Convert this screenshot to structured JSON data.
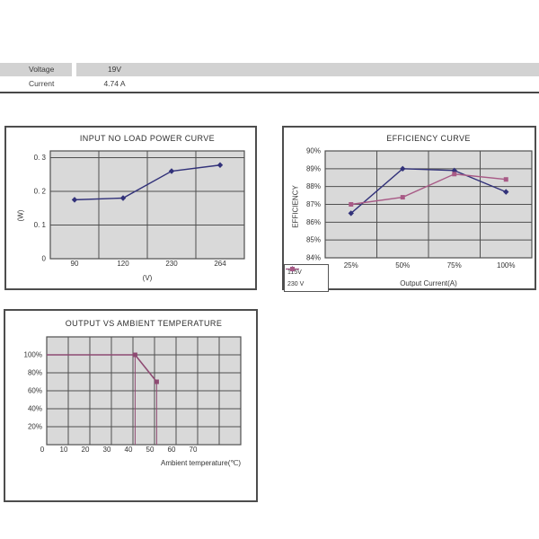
{
  "colors": {
    "plot_bg": "#D9D9D9",
    "grid": "#4F4F4F",
    "box_border": "#4D4D4D",
    "navy": "#32327A",
    "navy_marker": "#23235C",
    "magenta": "#A85A86",
    "magenta_marker": "#97406E",
    "purple": "#8E4A72",
    "table_row_bg": "#D2D2D2"
  },
  "spec_table": {
    "rows": [
      {
        "label": "Voltage",
        "value": "19V"
      },
      {
        "label": "Current",
        "value": "4.74 A"
      }
    ]
  },
  "chart_data": [
    {
      "id": "input-no-load-power-curve",
      "type": "line",
      "title": "INPUT NO LOAD POWER CURVE",
      "xlabel": "(V)",
      "ylabel": "(W)",
      "categories": [
        "90",
        "120",
        "230",
        "264"
      ],
      "values": [
        0.175,
        0.18,
        0.26,
        0.278
      ],
      "ylim": [
        0,
        0.32
      ],
      "yticks": [
        {
          "v": 0,
          "label": "0"
        },
        {
          "v": 0.1,
          "label": "0. 1"
        },
        {
          "v": 0.2,
          "label": "0. 2"
        },
        {
          "v": 0.3,
          "label": "0. 3"
        }
      ],
      "line_color": "#32327A",
      "marker": "diamond",
      "grid": true,
      "legend": "none"
    },
    {
      "id": "efficiency-curve",
      "type": "line",
      "title": "EFFICIENCY CURVE",
      "xlabel": "Output Current(A)",
      "ylabel": "EFFICIENCY",
      "categories": [
        "25%",
        "50%",
        "75%",
        "100%"
      ],
      "series": [
        {
          "name": "115V",
          "values": [
            86.5,
            89.0,
            88.9,
            87.7
          ],
          "color": "#32327A",
          "marker": "diamond"
        },
        {
          "name": "230 V",
          "values": [
            87.0,
            87.4,
            88.7,
            88.4
          ],
          "color": "#A85A86",
          "marker": "square"
        }
      ],
      "ylim": [
        84,
        90
      ],
      "yticks": [
        {
          "v": 84,
          "label": "84%"
        },
        {
          "v": 85,
          "label": "85%"
        },
        {
          "v": 86,
          "label": "86%"
        },
        {
          "v": 87,
          "label": "87%"
        },
        {
          "v": 88,
          "label": "88%"
        },
        {
          "v": 89,
          "label": "89%"
        },
        {
          "v": 90,
          "label": "90%"
        }
      ],
      "grid": true,
      "legend_position": "bottom-left"
    },
    {
      "id": "output-vs-ambient-temperature",
      "type": "line",
      "title": "OUTPUT VS AMBIENT TEMPERATURE",
      "xlabel": "Ambient temperature(℃)",
      "ylabel": "",
      "xlim": [
        0,
        90
      ],
      "x_gridstep": 10,
      "xticks": [
        {
          "v": 0,
          "label": "0"
        },
        {
          "v": 10,
          "label": "10"
        },
        {
          "v": 20,
          "label": "20"
        },
        {
          "v": 30,
          "label": "30"
        },
        {
          "v": 40,
          "label": "40"
        },
        {
          "v": 50,
          "label": "50"
        },
        {
          "v": 60,
          "label": "60"
        },
        {
          "v": 70,
          "label": "70"
        }
      ],
      "ylim": [
        0,
        120
      ],
      "y_gridstep": 20,
      "yticks": [
        {
          "v": 20,
          "label": "20%"
        },
        {
          "v": 40,
          "label": "40%"
        },
        {
          "v": 60,
          "label": "60%"
        },
        {
          "v": 80,
          "label": "80%"
        },
        {
          "v": 100,
          "label": "100%"
        }
      ],
      "color": "#8E4A72",
      "marker_color": "#8E4A72",
      "segments": [
        {
          "points": [
            [
              0,
              100
            ],
            [
              41,
              100
            ],
            [
              51,
              70
            ]
          ],
          "width": 1.6
        },
        {
          "points": [
            [
              41,
              100
            ],
            [
              41,
              0
            ]
          ],
          "width": 1
        },
        {
          "points": [
            [
              51,
              70
            ],
            [
              51,
              0
            ]
          ],
          "width": 1
        }
      ],
      "markers": [
        [
          41,
          100
        ],
        [
          51,
          70
        ]
      ],
      "grid": true
    }
  ]
}
